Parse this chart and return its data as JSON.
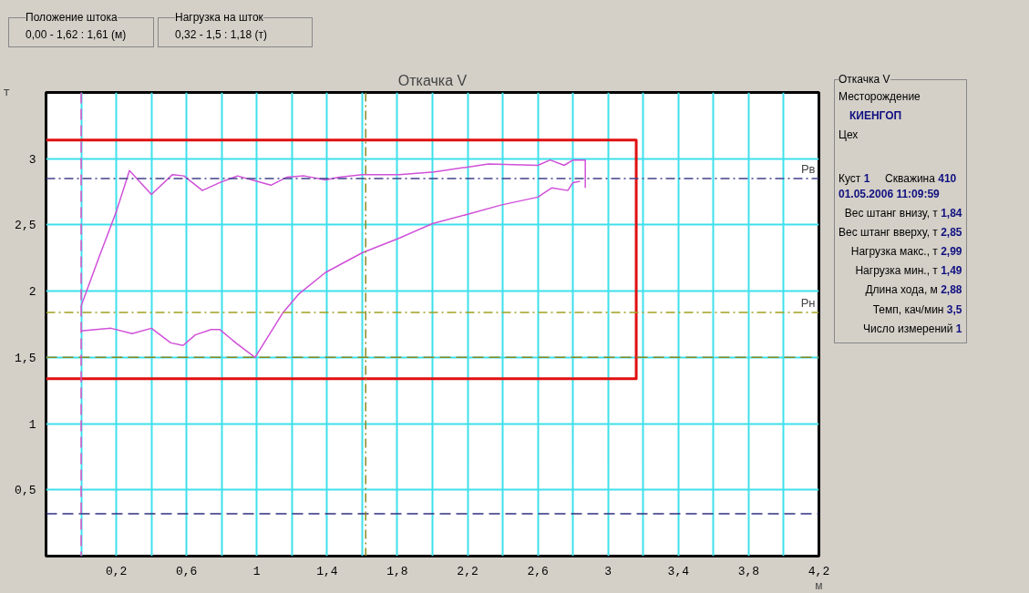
{
  "chart_data": {
    "type": "line",
    "title": "Откачка V",
    "xlabel": "м",
    "ylabel": "т",
    "xlim": [
      -0.2,
      4.2
    ],
    "ylim": [
      0,
      3.5
    ],
    "xticks": [
      {
        "value": 0,
        "label": null
      },
      {
        "value": 0.2,
        "label": "0,2"
      },
      {
        "value": 0.4,
        "label": null
      },
      {
        "value": 0.6,
        "label": "0,6"
      },
      {
        "value": 0.8,
        "label": null
      },
      {
        "value": 1,
        "label": "1"
      },
      {
        "value": 1.2,
        "label": null
      },
      {
        "value": 1.4,
        "label": "1,4"
      },
      {
        "value": 1.6,
        "label": null
      },
      {
        "value": 1.8,
        "label": "1,8"
      },
      {
        "value": 2,
        "label": null
      },
      {
        "value": 2.2,
        "label": "2,2"
      },
      {
        "value": 2.4,
        "label": null
      },
      {
        "value": 2.6,
        "label": "2,6"
      },
      {
        "value": 2.8,
        "label": null
      },
      {
        "value": 3,
        "label": "3"
      },
      {
        "value": 3.2,
        "label": null
      },
      {
        "value": 3.4,
        "label": "3,4"
      },
      {
        "value": 3.6,
        "label": null
      },
      {
        "value": 3.8,
        "label": "3,8"
      },
      {
        "value": 4,
        "label": null
      },
      {
        "value": 4.2,
        "label": "4,2"
      }
    ],
    "yticks": [
      {
        "value": 0.5,
        "label": "0,5"
      },
      1,
      {
        "value": 1.5,
        "label": "1,5"
      },
      2,
      {
        "value": 2.5,
        "label": "2,5"
      },
      3
    ],
    "grid": true,
    "marker": "none",
    "series": [
      {
        "color": "#d050d8",
        "line_style": "solid",
        "x": [
          0,
          0.1,
          0.2,
          0.275,
          0.4,
          0.52,
          0.585,
          0.69,
          0.79,
          0.89,
          1.0,
          1.08,
          1.17,
          1.27,
          1.39,
          1.47,
          1.6,
          1.81,
          2.01,
          2.32,
          2.6,
          2.67,
          2.75,
          2.8,
          2.87,
          2.87
        ],
        "values": [
          1.89,
          2.25,
          2.6,
          2.91,
          2.73,
          2.88,
          2.87,
          2.76,
          2.82,
          2.87,
          2.83,
          2.8,
          2.86,
          2.87,
          2.84,
          2.86,
          2.88,
          2.88,
          2.9,
          2.96,
          2.95,
          2.99,
          2.95,
          2.99,
          2.99,
          2.78
        ]
      },
      {
        "color": "#d050d8",
        "line_style": "solid",
        "x": [
          2.84,
          2.8,
          2.77,
          2.68,
          2.6,
          2.39,
          2.2,
          2.0,
          1.81,
          1.6,
          1.39,
          1.24,
          1.15,
          0.99,
          0.88,
          0.79,
          0.74,
          0.65,
          0.58,
          0.51,
          0.4,
          0.29,
          0.17,
          0
        ],
        "values": [
          2.83,
          2.82,
          2.76,
          2.78,
          2.71,
          2.65,
          2.58,
          2.51,
          2.4,
          2.29,
          2.14,
          1.98,
          1.84,
          1.5,
          1.61,
          1.71,
          1.71,
          1.67,
          1.59,
          1.61,
          1.72,
          1.68,
          1.72,
          1.7
        ]
      },
      {
        "color": "#e01010",
        "line_style": "solid",
        "x": [
          -0.2,
          3.16,
          3.16,
          -0.2
        ],
        "values": [
          3.14,
          3.14,
          1.34,
          1.34
        ]
      }
    ],
    "ref_lines": [
      {
        "axis": "y",
        "value": 2.85,
        "label": "Pв",
        "color": "#40408a",
        "line_style": "dashdot"
      },
      {
        "axis": "y",
        "value": 1.84,
        "label": "Pн",
        "color": "#a0a020",
        "line_style": "dashdot"
      },
      {
        "axis": "y",
        "value": 1.5,
        "label": null,
        "color": "#8a8a20",
        "line_style": "dashed"
      },
      {
        "axis": "y",
        "value": 0.32,
        "label": null,
        "color": "#303080",
        "line_style": "dashed"
      },
      {
        "axis": "x",
        "value": 0,
        "label": null,
        "color": "#e050c0",
        "line_style": "dashed"
      },
      {
        "axis": "x",
        "value": 1.62,
        "label": null,
        "color": "#8a8a20",
        "line_style": "dashdot"
      }
    ],
    "annotations": [
      "Положение штока",
      "0,00 - 1,62 : 1,61 (м)",
      "Нагрузка на шток",
      "0,32 - 1,5 : 1,18 (т)",
      "Откачка V",
      "Месторождение",
      "КИЕНГОП",
      "Цех",
      "Куст",
      "1",
      "Скважина",
      "410",
      "01.05.2006  11:09:59",
      "Вес штанг внизу, т",
      "1,84",
      "Вес штанг вверху, т",
      "2,85",
      "Нагрузка макс., т",
      "2,99",
      "Нагрузка мин., т",
      "1,49",
      "Длина хода, м",
      "2,88",
      "Темп, кач/мин",
      "3,5",
      "Число измерений",
      "1"
    ]
  }
}
